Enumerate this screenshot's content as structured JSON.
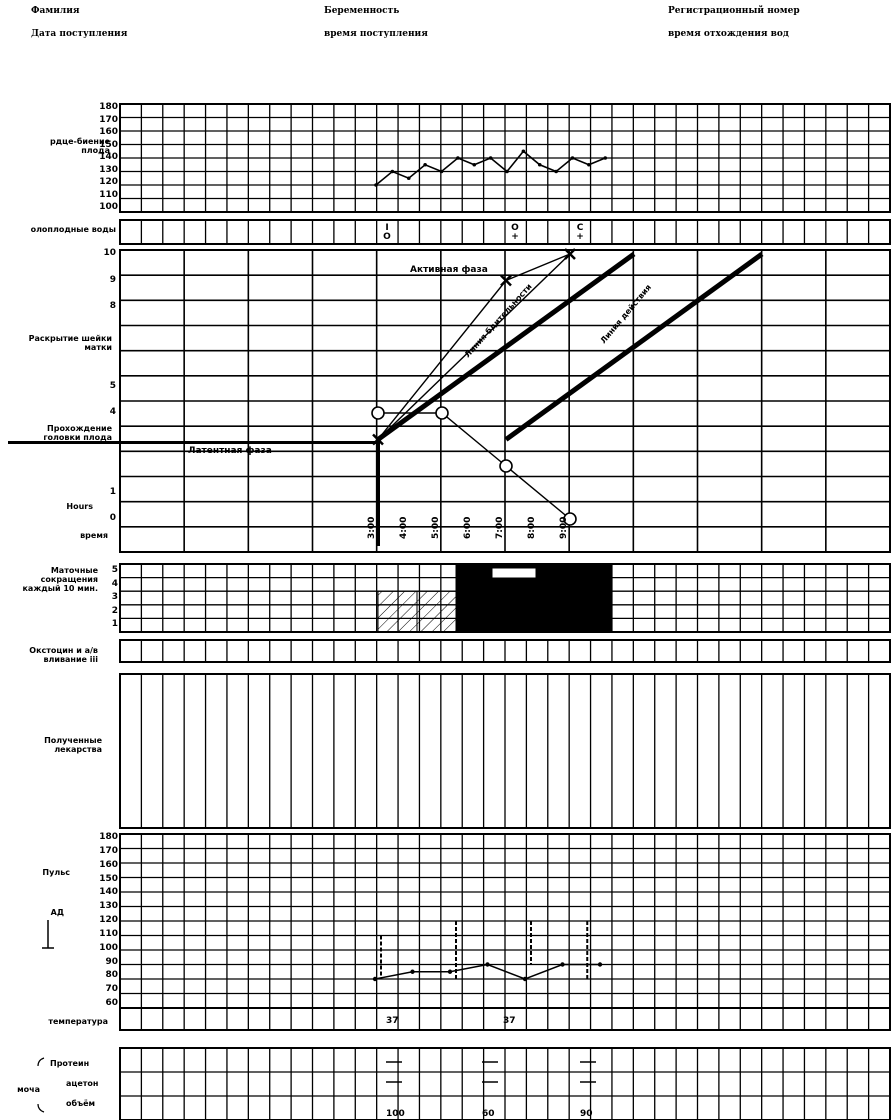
{
  "header": {
    "surname": "Фамилия",
    "admission_date": "Дата поступления",
    "pregnancy": "Беременность",
    "admission_time": "время поступления",
    "reg_number": "Регистрационный номер",
    "water_break_time": "время отхождения вод"
  },
  "fhr": {
    "label": "рдце-биение\nплода",
    "ticks": [
      "180",
      "170",
      "160",
      "150",
      "140",
      "130",
      "120",
      "110",
      "100"
    ]
  },
  "amniotic": {
    "label": "олоплодные воды",
    "marks": [
      "I\nO",
      "O\n+",
      "C\n+"
    ]
  },
  "partograph": {
    "cervix_label": "Раскрытие шейки\nматки",
    "descent_label": "Прохождение\nголовки плода",
    "hours_label": "Hours",
    "time_label": "время",
    "ticks": [
      "10",
      "9",
      "8",
      "5",
      "4",
      "1",
      "0"
    ],
    "active_phase": "Активная фаза",
    "latent_phase": "Латентная фаза",
    "alert_line": "Линия бдительности",
    "action_line": "Линия действия",
    "times": [
      "3:00",
      "4:00",
      "5:00",
      "6:00",
      "7:00",
      "8:00",
      "9:00"
    ]
  },
  "contractions": {
    "label": "Маточные\nсокращения\nкаждый 10 мин.",
    "ticks": [
      "5",
      "4",
      "3",
      "2",
      "1"
    ]
  },
  "oxytocin": {
    "label": "Окстоцин и а/в\nвливание iii",
    "unit": "а"
  },
  "medications": {
    "label": "Полученные\nлекарства"
  },
  "pulse_bp": {
    "pulse_label": "Пульс",
    "bp_label": "АД",
    "ticks": [
      "180",
      "170",
      "160",
      "150",
      "140",
      "130",
      "120",
      "110",
      "100",
      "90",
      "80",
      "70",
      "60"
    ]
  },
  "temperature": {
    "label": "температура",
    "values": [
      "37",
      "37"
    ]
  },
  "urine": {
    "label": "моча",
    "protein": "Протеин",
    "acetone": "ацетон",
    "volume": "объём",
    "volumes": [
      "100",
      "60",
      "90"
    ]
  },
  "chart_data": {
    "type": "line",
    "fetal_heart_rate": {
      "time_hours": [
        3.0,
        3.25,
        3.5,
        3.75,
        4.0,
        4.25,
        4.5,
        4.75,
        5.0,
        5.25,
        5.5,
        5.75,
        6.0,
        6.25,
        6.5
      ],
      "bpm": [
        120,
        130,
        125,
        135,
        130,
        140,
        135,
        140,
        130,
        145,
        135,
        130,
        140,
        135,
        140
      ],
      "ylim": [
        100,
        180
      ]
    },
    "cervical_dilatation": {
      "time_hours": [
        3.0,
        5.0,
        6.0
      ],
      "cm": [
        3,
        9,
        10
      ]
    },
    "head_descent": {
      "time_hours": [
        3.0,
        4.0,
        5.0,
        6.0
      ],
      "fifths": [
        4,
        4,
        2,
        0
      ]
    },
    "alert_line": {
      "from": [
        3.0,
        3
      ],
      "to": [
        7.0,
        10
      ]
    },
    "action_line": {
      "from": [
        5.0,
        3
      ],
      "to": [
        9.0,
        10
      ]
    },
    "contractions_per_10min": {
      "time_hours": [
        3.0,
        3.5,
        4.0,
        4.5,
        5.0,
        5.5
      ],
      "count": [
        3,
        3,
        5,
        5,
        5,
        5
      ],
      "ylim": [
        0,
        5
      ]
    },
    "pulse": {
      "time_hours": [
        3.0,
        3.5,
        4.0,
        4.5,
        5.0,
        5.5,
        6.0
      ],
      "bpm": [
        80,
        85,
        85,
        90,
        80,
        90,
        90
      ]
    },
    "blood_pressure": {
      "time_hours": [
        3.0,
        4.0,
        5.0,
        5.75
      ],
      "systolic": [
        110,
        120,
        120,
        120
      ],
      "diastolic": [
        80,
        80,
        90,
        80
      ]
    },
    "ylim_pulse_bp": [
      60,
      180
    ],
    "xlim": [
      3,
      9
    ]
  }
}
